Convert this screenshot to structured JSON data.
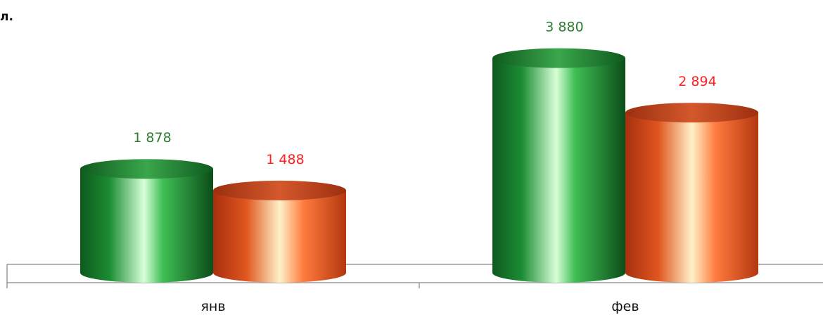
{
  "chart_data": {
    "type": "bar",
    "style": "3d-cylinder",
    "title_fragment": "л.",
    "categories": [
      "янв",
      "фев"
    ],
    "series": [
      {
        "color": "#1f8a35",
        "label_color": "#2e7d32",
        "values": [
          1878,
          3880
        ],
        "labels": [
          "1 878",
          "3 880"
        ]
      },
      {
        "color": "#e8582a",
        "label_color": "#ff2020",
        "values": [
          1488,
          2894
        ],
        "labels": [
          "1 488",
          "2 894"
        ]
      }
    ],
    "ylim": [
      0,
      4000
    ],
    "grid": false,
    "legend": "none"
  }
}
